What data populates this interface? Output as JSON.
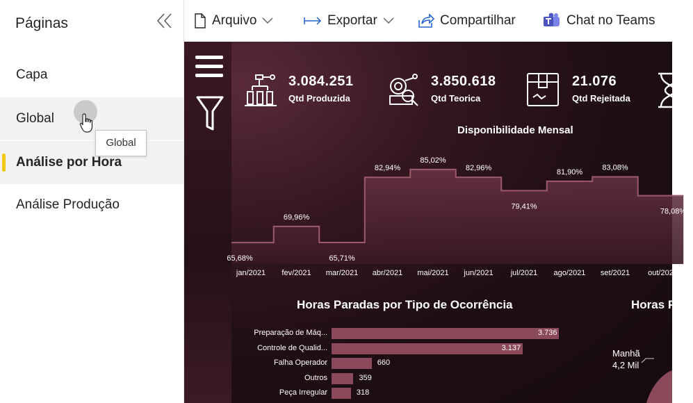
{
  "sidebar": {
    "title": "Páginas",
    "items": [
      {
        "label": "Capa"
      },
      {
        "label": "Global"
      },
      {
        "label": "Análise por Hora"
      },
      {
        "label": "Análise Produção"
      }
    ],
    "tooltip": "Global"
  },
  "toolbar": {
    "arquivo": "Arquivo",
    "exportar": "Exportar",
    "compartilhar": "Compartilhar",
    "teams": "Chat no Teams"
  },
  "kpis": [
    {
      "value": "3.084.251",
      "label": "Qtd Produzida",
      "icon": "robot-arm-icon"
    },
    {
      "value": "3.850.618",
      "label": "Qtd Teorica",
      "icon": "gear-magnifier-icon"
    },
    {
      "value": "21.076",
      "label": "Qtd Rejeitada",
      "icon": "box-icon"
    },
    {
      "value": "",
      "label": "",
      "icon": "hourglass-icon"
    }
  ],
  "chart_data": [
    {
      "type": "area",
      "title": "Disponibilidade Mensal",
      "categories": [
        "jan/2021",
        "fev/2021",
        "mar/2021",
        "abr/2021",
        "mai/2021",
        "jun/2021",
        "jul/2021",
        "ago/2021",
        "set/2021",
        "out/202"
      ],
      "values": [
        65.68,
        69.96,
        65.71,
        82.94,
        85.02,
        82.96,
        79.41,
        81.9,
        83.08,
        78.08
      ],
      "data_labels": [
        "65,68%",
        "69,96%",
        "65,71%",
        "82,94%",
        "85,02%",
        "82,96%",
        "79,41%",
        "81,90%",
        "83,08%",
        "78,08%"
      ],
      "step": true,
      "ylim": [
        60,
        90
      ]
    },
    {
      "type": "bar",
      "orientation": "horizontal",
      "title": "Horas Paradas por Tipo de Ocorrência",
      "categories": [
        "Preparação de Máq...",
        "Controle de Qualid...",
        "Falha Operador",
        "Outros",
        "Peça Irregular"
      ],
      "values": [
        3736,
        3137,
        660,
        359,
        318
      ],
      "data_labels": [
        "3.736",
        "3.137",
        "660",
        "359",
        "318"
      ],
      "xlim": [
        0,
        4000
      ]
    },
    {
      "type": "pie",
      "title": "Horas P",
      "slices": [
        {
          "name": "Manhã",
          "label": "4,2 Mil"
        }
      ]
    }
  ],
  "colors": {
    "bar": "#8b4a5c",
    "area_fill": "#5c2a3a",
    "line": "#9c5a6c",
    "accent_active": "#f2c811"
  }
}
